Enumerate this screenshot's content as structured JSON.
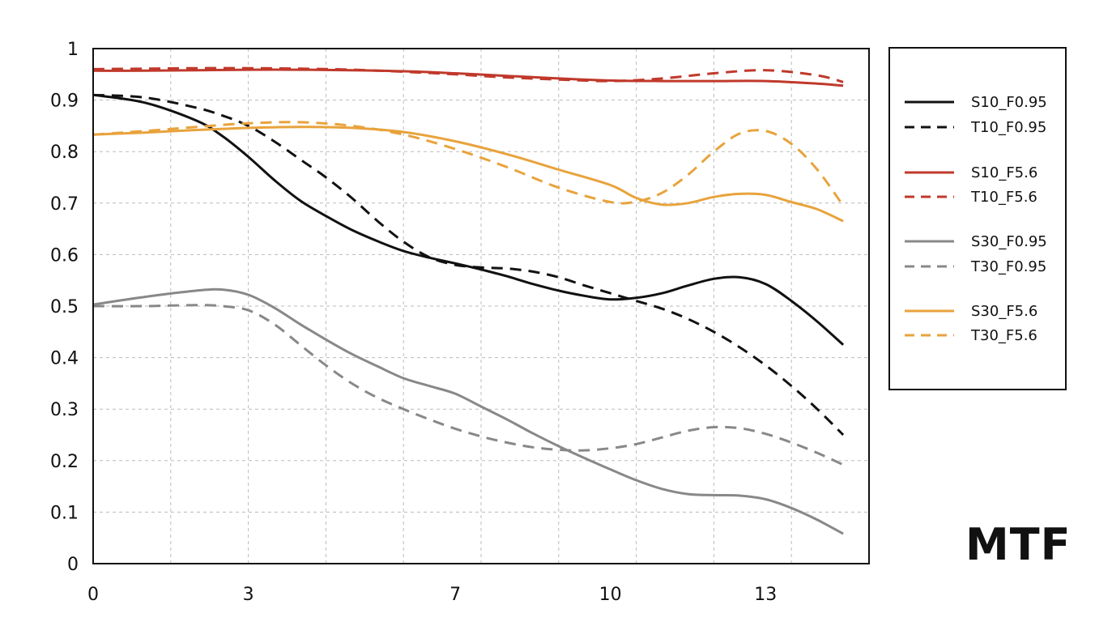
{
  "chart_data": {
    "type": "line",
    "title": "MTF",
    "xlabel": "",
    "ylabel": "",
    "xlim": [
      0,
      15
    ],
    "ylim": [
      0,
      1
    ],
    "x_ticks": [
      "0",
      "3",
      "7",
      "10",
      "13"
    ],
    "y_ticks": [
      "0",
      "0.1",
      "0.2",
      "0.3",
      "0.4",
      "0.5",
      "0.6",
      "0.7",
      "0.8",
      "0.9",
      "1"
    ],
    "grid": true,
    "legend_position": "right",
    "series": [
      {
        "name": "S10_F0.95",
        "color": "#111111",
        "dashed": false,
        "points": [
          [
            0,
            0.91
          ],
          [
            1,
            0.895
          ],
          [
            2,
            0.86
          ],
          [
            2.5,
            0.83
          ],
          [
            3,
            0.79
          ],
          [
            3.5,
            0.745
          ],
          [
            4,
            0.705
          ],
          [
            4.5,
            0.675
          ],
          [
            5,
            0.648
          ],
          [
            5.5,
            0.626
          ],
          [
            6,
            0.607
          ],
          [
            6.5,
            0.594
          ],
          [
            7,
            0.583
          ],
          [
            7.5,
            0.571
          ],
          [
            8,
            0.558
          ],
          [
            8.5,
            0.543
          ],
          [
            9,
            0.53
          ],
          [
            9.5,
            0.52
          ],
          [
            10,
            0.513
          ],
          [
            10.5,
            0.516
          ],
          [
            11,
            0.525
          ],
          [
            11.5,
            0.54
          ],
          [
            12,
            0.553
          ],
          [
            12.5,
            0.556
          ],
          [
            13,
            0.543
          ],
          [
            13.5,
            0.51
          ],
          [
            14,
            0.47
          ],
          [
            14.5,
            0.425
          ]
        ]
      },
      {
        "name": "T10_F0.95",
        "color": "#111111",
        "dashed": true,
        "points": [
          [
            0,
            0.91
          ],
          [
            1,
            0.905
          ],
          [
            2,
            0.885
          ],
          [
            2.5,
            0.87
          ],
          [
            3,
            0.85
          ],
          [
            3.5,
            0.82
          ],
          [
            4,
            0.785
          ],
          [
            4.5,
            0.75
          ],
          [
            5,
            0.71
          ],
          [
            5.5,
            0.665
          ],
          [
            6,
            0.625
          ],
          [
            6.5,
            0.595
          ],
          [
            7,
            0.58
          ],
          [
            7.5,
            0.575
          ],
          [
            8,
            0.573
          ],
          [
            8.5,
            0.567
          ],
          [
            9,
            0.556
          ],
          [
            9.5,
            0.54
          ],
          [
            10,
            0.525
          ],
          [
            10.5,
            0.51
          ],
          [
            11,
            0.495
          ],
          [
            11.5,
            0.475
          ],
          [
            12,
            0.45
          ],
          [
            12.5,
            0.42
          ],
          [
            13,
            0.385
          ],
          [
            13.5,
            0.345
          ],
          [
            14,
            0.3
          ],
          [
            14.5,
            0.25
          ]
        ]
      },
      {
        "name": "S10_F5.6",
        "color": "#c0392b",
        "dashed": false,
        "points": [
          [
            0,
            0.957
          ],
          [
            1,
            0.957
          ],
          [
            2,
            0.958
          ],
          [
            3,
            0.959
          ],
          [
            4,
            0.959
          ],
          [
            5,
            0.958
          ],
          [
            6,
            0.956
          ],
          [
            7,
            0.952
          ],
          [
            8,
            0.947
          ],
          [
            9,
            0.942
          ],
          [
            10,
            0.938
          ],
          [
            11,
            0.937
          ],
          [
            12,
            0.937
          ],
          [
            13,
            0.937
          ],
          [
            14,
            0.932
          ],
          [
            14.5,
            0.928
          ]
        ]
      },
      {
        "name": "T10_F5.6",
        "color": "#c0392b",
        "dashed": true,
        "points": [
          [
            0,
            0.96
          ],
          [
            1,
            0.961
          ],
          [
            2,
            0.962
          ],
          [
            3,
            0.962
          ],
          [
            4,
            0.961
          ],
          [
            5,
            0.959
          ],
          [
            6,
            0.955
          ],
          [
            7,
            0.95
          ],
          [
            8,
            0.944
          ],
          [
            9,
            0.94
          ],
          [
            10,
            0.937
          ],
          [
            11,
            0.942
          ],
          [
            12,
            0.952
          ],
          [
            13,
            0.958
          ],
          [
            14,
            0.948
          ],
          [
            14.5,
            0.935
          ]
        ]
      },
      {
        "name": "S30_F0.95",
        "color": "#888888",
        "dashed": false,
        "points": [
          [
            0,
            0.503
          ],
          [
            1,
            0.518
          ],
          [
            2,
            0.53
          ],
          [
            2.5,
            0.532
          ],
          [
            3,
            0.522
          ],
          [
            3.5,
            0.497
          ],
          [
            4,
            0.465
          ],
          [
            4.5,
            0.435
          ],
          [
            5,
            0.407
          ],
          [
            5.5,
            0.383
          ],
          [
            6,
            0.36
          ],
          [
            6.5,
            0.345
          ],
          [
            7,
            0.33
          ],
          [
            7.5,
            0.305
          ],
          [
            8,
            0.28
          ],
          [
            8.5,
            0.253
          ],
          [
            9,
            0.228
          ],
          [
            9.5,
            0.205
          ],
          [
            10,
            0.183
          ],
          [
            10.5,
            0.162
          ],
          [
            11,
            0.145
          ],
          [
            11.5,
            0.135
          ],
          [
            12,
            0.133
          ],
          [
            12.5,
            0.132
          ],
          [
            13,
            0.125
          ],
          [
            13.5,
            0.108
          ],
          [
            14,
            0.085
          ],
          [
            14.5,
            0.058
          ]
        ]
      },
      {
        "name": "T30_F0.95",
        "color": "#888888",
        "dashed": true,
        "points": [
          [
            0,
            0.5
          ],
          [
            1,
            0.5
          ],
          [
            2,
            0.502
          ],
          [
            2.5,
            0.5
          ],
          [
            3,
            0.492
          ],
          [
            3.5,
            0.465
          ],
          [
            4,
            0.425
          ],
          [
            4.5,
            0.385
          ],
          [
            5,
            0.35
          ],
          [
            5.5,
            0.322
          ],
          [
            6,
            0.3
          ],
          [
            6.5,
            0.28
          ],
          [
            7,
            0.262
          ],
          [
            7.5,
            0.247
          ],
          [
            8,
            0.235
          ],
          [
            8.5,
            0.226
          ],
          [
            9,
            0.221
          ],
          [
            9.5,
            0.22
          ],
          [
            10,
            0.224
          ],
          [
            10.5,
            0.232
          ],
          [
            11,
            0.245
          ],
          [
            11.5,
            0.258
          ],
          [
            12,
            0.265
          ],
          [
            12.5,
            0.263
          ],
          [
            13,
            0.252
          ],
          [
            13.5,
            0.235
          ],
          [
            14,
            0.215
          ],
          [
            14.5,
            0.192
          ]
        ]
      },
      {
        "name": "S30_F5.6",
        "color": "#e8a33c",
        "dashed": false,
        "points": [
          [
            0,
            0.833
          ],
          [
            1,
            0.837
          ],
          [
            2,
            0.842
          ],
          [
            3,
            0.846
          ],
          [
            4,
            0.848
          ],
          [
            5,
            0.846
          ],
          [
            6,
            0.838
          ],
          [
            7,
            0.82
          ],
          [
            8,
            0.795
          ],
          [
            9,
            0.765
          ],
          [
            10,
            0.735
          ],
          [
            10.5,
            0.71
          ],
          [
            11,
            0.697
          ],
          [
            11.5,
            0.7
          ],
          [
            12,
            0.712
          ],
          [
            12.5,
            0.718
          ],
          [
            13,
            0.716
          ],
          [
            13.5,
            0.702
          ],
          [
            14,
            0.688
          ],
          [
            14.5,
            0.665
          ]
        ]
      },
      {
        "name": "T30_F5.6",
        "color": "#e8a33c",
        "dashed": true,
        "points": [
          [
            0,
            0.833
          ],
          [
            1,
            0.84
          ],
          [
            2,
            0.848
          ],
          [
            3,
            0.855
          ],
          [
            4,
            0.857
          ],
          [
            5,
            0.85
          ],
          [
            6,
            0.833
          ],
          [
            7,
            0.805
          ],
          [
            8,
            0.77
          ],
          [
            9,
            0.73
          ],
          [
            10,
            0.702
          ],
          [
            10.5,
            0.703
          ],
          [
            11,
            0.72
          ],
          [
            11.5,
            0.755
          ],
          [
            12,
            0.8
          ],
          [
            12.5,
            0.835
          ],
          [
            13,
            0.84
          ],
          [
            13.5,
            0.815
          ],
          [
            14,
            0.765
          ],
          [
            14.5,
            0.695
          ]
        ]
      }
    ]
  }
}
